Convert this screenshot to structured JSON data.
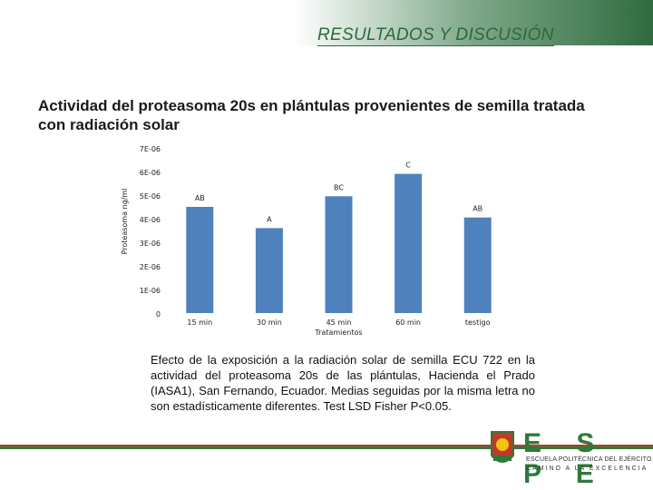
{
  "header": {
    "section_title": "RESULTADOS Y DISCUSIÓN"
  },
  "slide": {
    "title": "Actividad del proteasoma 20s en plántulas provenientes de semilla tratada con radiación solar",
    "caption": "Efecto de la exposición a la radiación solar de semilla ECU 722 en la actividad del proteasoma 20s de las plántulas, Hacienda el Prado (IASA1), San Fernando, Ecuador. Medias seguidas por la misma letra no son estadísticamente diferentes. Test LSD Fisher P<0.05."
  },
  "logo": {
    "letters": "E S P E",
    "line1": "ESCUELA POLITÉCNICA DEL EJÉRCITO",
    "line2": "CAMINO A LA EXCELENCIA"
  },
  "colors": {
    "bar": "#4f81bd",
    "accent_green": "#2f7a3a",
    "accent_red": "#c0392b"
  },
  "chart_data": {
    "type": "bar",
    "categories": [
      "15 min",
      "30 min",
      "45 min",
      "60 min",
      "testigo"
    ],
    "values": [
      4.5e-06,
      3.6e-06,
      4.95e-06,
      5.9e-06,
      4.05e-06
    ],
    "bar_labels": [
      "AB",
      "A",
      "BC",
      "C",
      "AB"
    ],
    "xlabel": "Tratamientos",
    "ylabel": "Proteasoma ng/ml",
    "ylim": [
      0,
      7e-06
    ],
    "yticks": [
      0,
      1e-06,
      2e-06,
      3e-06,
      4e-06,
      5e-06,
      6e-06,
      7e-06
    ],
    "ytick_labels": [
      "0",
      "1E-06",
      "2E-06",
      "3E-06",
      "4E-06",
      "5E-06",
      "6E-06",
      "7E-06"
    ],
    "grid": false,
    "legend": false
  }
}
